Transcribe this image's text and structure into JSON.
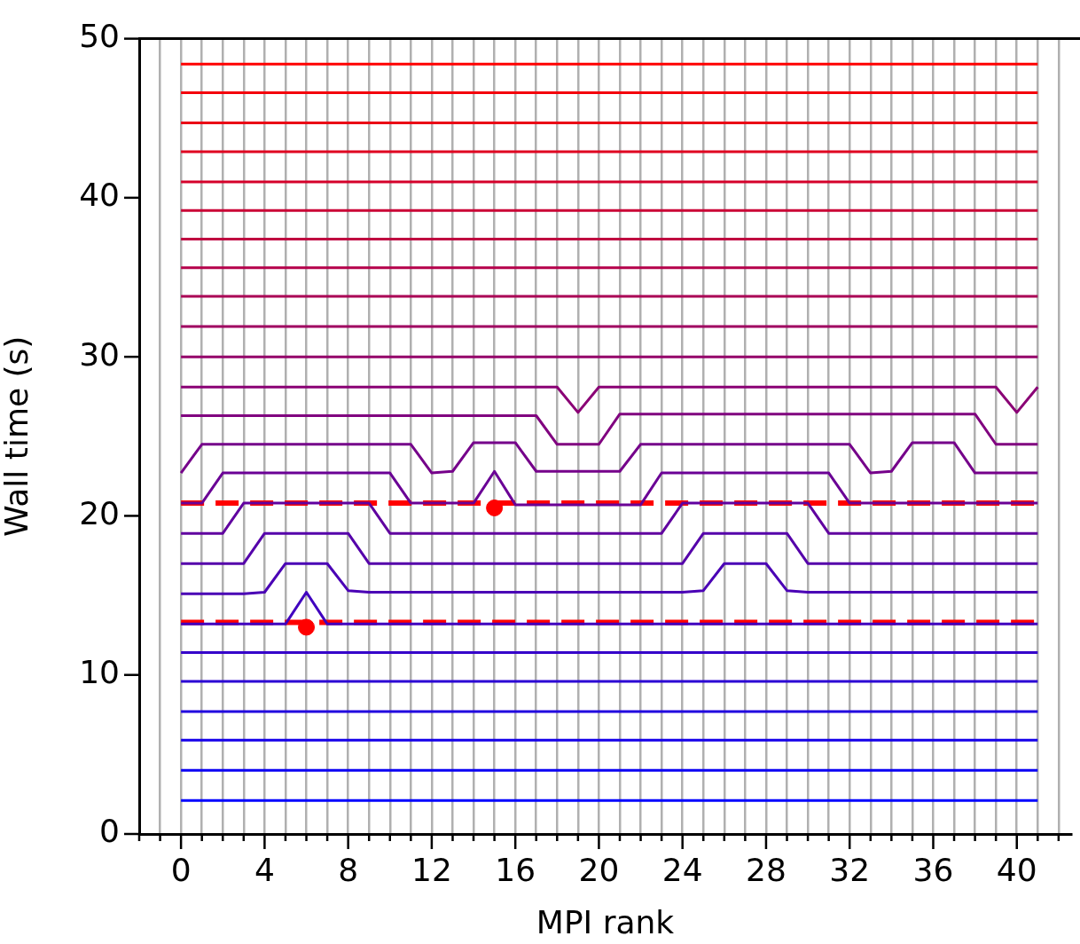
{
  "chart_data": {
    "type": "line",
    "xlabel": "MPI rank",
    "ylabel": "Wall time (s)",
    "x": [
      0,
      1,
      2,
      3,
      4,
      5,
      6,
      7,
      8,
      9,
      10,
      11,
      12,
      13,
      14,
      15,
      16,
      17,
      18,
      19,
      20,
      21,
      22,
      23,
      24,
      25,
      26,
      27,
      28,
      29,
      30,
      31,
      32,
      33,
      34,
      35,
      36,
      37,
      38,
      39,
      40,
      41
    ],
    "xlim": [
      -2,
      42.6
    ],
    "ylim": [
      0,
      50
    ],
    "xticks": [
      {
        "value": -2,
        "label": null
      },
      {
        "value": -1,
        "label": null
      },
      0,
      {
        "value": 1,
        "label": null
      },
      {
        "value": 2,
        "label": null
      },
      {
        "value": 3,
        "label": null
      },
      4,
      {
        "value": 5,
        "label": null
      },
      {
        "value": 6,
        "label": null
      },
      {
        "value": 7,
        "label": null
      },
      8,
      {
        "value": 9,
        "label": null
      },
      {
        "value": 10,
        "label": null
      },
      {
        "value": 11,
        "label": null
      },
      12,
      {
        "value": 13,
        "label": null
      },
      {
        "value": 14,
        "label": null
      },
      {
        "value": 15,
        "label": null
      },
      16,
      {
        "value": 17,
        "label": null
      },
      {
        "value": 18,
        "label": null
      },
      {
        "value": 19,
        "label": null
      },
      20,
      {
        "value": 21,
        "label": null
      },
      {
        "value": 22,
        "label": null
      },
      {
        "value": 23,
        "label": null
      },
      24,
      {
        "value": 25,
        "label": null
      },
      {
        "value": 26,
        "label": null
      },
      {
        "value": 27,
        "label": null
      },
      28,
      {
        "value": 29,
        "label": null
      },
      {
        "value": 30,
        "label": null
      },
      {
        "value": 31,
        "label": null
      },
      32,
      {
        "value": 33,
        "label": null
      },
      {
        "value": 34,
        "label": null
      },
      {
        "value": 35,
        "label": null
      },
      36,
      {
        "value": 37,
        "label": null
      },
      {
        "value": 38,
        "label": null
      },
      {
        "value": 39,
        "label": null
      },
      40,
      {
        "value": 41,
        "label": null
      },
      {
        "value": 42,
        "label": null
      }
    ],
    "yticks": [
      0,
      10,
      20,
      30,
      40,
      50
    ],
    "grid": "x",
    "legend": false,
    "marker": "none",
    "line_style": "solid",
    "series": [
      {
        "color": "#0000ff",
        "values": [
          2.1,
          2.1,
          2.1,
          2.1,
          2.1,
          2.1,
          2.1,
          2.1,
          2.1,
          2.1,
          2.1,
          2.1,
          2.1,
          2.1,
          2.1,
          2.1,
          2.1,
          2.1,
          2.1,
          2.1,
          2.1,
          2.1,
          2.1,
          2.1,
          2.1,
          2.1,
          2.1,
          2.1,
          2.1,
          2.1,
          2.1,
          2.1,
          2.1,
          2.1,
          2.1,
          2.1,
          2.1,
          2.1,
          2.1,
          2.1,
          2.1,
          2.1
        ]
      },
      {
        "color": "#0b00f4",
        "values": [
          4.0,
          4.0,
          4.0,
          4.0,
          4.0,
          4.0,
          4.0,
          4.0,
          4.0,
          4.0,
          4.0,
          4.0,
          4.0,
          4.0,
          4.0,
          4.0,
          4.0,
          4.0,
          4.0,
          4.0,
          4.0,
          4.0,
          4.0,
          4.0,
          4.0,
          4.0,
          4.0,
          4.0,
          4.0,
          4.0,
          4.0,
          4.0,
          4.0,
          4.0,
          4.0,
          4.0,
          4.0,
          4.0,
          4.0,
          4.0,
          4.0,
          4.0
        ]
      },
      {
        "color": "#1500ea",
        "values": [
          5.9,
          5.9,
          5.9,
          5.9,
          5.9,
          5.9,
          5.9,
          5.9,
          5.9,
          5.9,
          5.9,
          5.9,
          5.9,
          5.9,
          5.9,
          5.9,
          5.9,
          5.9,
          5.9,
          5.9,
          5.9,
          5.9,
          5.9,
          5.9,
          5.9,
          5.9,
          5.9,
          5.9,
          5.9,
          5.9,
          5.9,
          5.9,
          5.9,
          5.9,
          5.9,
          5.9,
          5.9,
          5.9,
          5.9,
          5.9,
          5.9,
          5.9
        ]
      },
      {
        "color": "#2000df",
        "values": [
          7.7,
          7.7,
          7.7,
          7.7,
          7.7,
          7.7,
          7.7,
          7.7,
          7.7,
          7.7,
          7.7,
          7.7,
          7.7,
          7.7,
          7.7,
          7.7,
          7.7,
          7.7,
          7.7,
          7.7,
          7.7,
          7.7,
          7.7,
          7.7,
          7.7,
          7.7,
          7.7,
          7.7,
          7.7,
          7.7,
          7.7,
          7.7,
          7.7,
          7.7,
          7.7,
          7.7,
          7.7,
          7.7,
          7.7,
          7.7,
          7.7,
          7.7
        ]
      },
      {
        "color": "#2b00d4",
        "values": [
          9.6,
          9.6,
          9.6,
          9.6,
          9.6,
          9.6,
          9.6,
          9.6,
          9.6,
          9.6,
          9.6,
          9.6,
          9.6,
          9.6,
          9.6,
          9.6,
          9.6,
          9.6,
          9.6,
          9.6,
          9.6,
          9.6,
          9.6,
          9.6,
          9.6,
          9.6,
          9.6,
          9.6,
          9.6,
          9.6,
          9.6,
          9.6,
          9.6,
          9.6,
          9.6,
          9.6,
          9.6,
          9.6,
          9.6,
          9.6,
          9.6,
          9.6
        ]
      },
      {
        "color": "#3500ca",
        "values": [
          11.4,
          11.4,
          11.4,
          11.4,
          11.4,
          11.4,
          11.4,
          11.4,
          11.4,
          11.4,
          11.4,
          11.4,
          11.4,
          11.4,
          11.4,
          11.4,
          11.4,
          11.4,
          11.4,
          11.4,
          11.4,
          11.4,
          11.4,
          11.4,
          11.4,
          11.4,
          11.4,
          11.4,
          11.4,
          11.4,
          11.4,
          11.4,
          11.4,
          11.4,
          11.4,
          11.4,
          11.4,
          11.4,
          11.4,
          11.4,
          11.4,
          11.4
        ]
      },
      {
        "color": "#4000bf",
        "values": [
          13.2,
          13.2,
          13.2,
          13.2,
          13.2,
          13.2,
          15.2,
          13.2,
          13.2,
          13.2,
          13.2,
          13.2,
          13.2,
          13.2,
          13.2,
          13.2,
          13.2,
          13.2,
          13.2,
          13.2,
          13.2,
          13.2,
          13.2,
          13.2,
          13.2,
          13.2,
          13.2,
          13.2,
          13.2,
          13.2,
          13.2,
          13.2,
          13.2,
          13.2,
          13.2,
          13.2,
          13.2,
          13.2,
          13.2,
          13.2,
          13.2,
          13.2
        ]
      },
      {
        "color": "#4a00b5",
        "values": [
          15.1,
          15.1,
          15.1,
          15.1,
          15.2,
          17.0,
          17.0,
          17.0,
          15.3,
          15.2,
          15.2,
          15.2,
          15.2,
          15.2,
          15.2,
          15.2,
          15.2,
          15.2,
          15.2,
          15.2,
          15.2,
          15.2,
          15.2,
          15.2,
          15.2,
          15.3,
          17.0,
          17.0,
          17.0,
          15.3,
          15.2,
          15.2,
          15.2,
          15.2,
          15.2,
          15.2,
          15.2,
          15.2,
          15.2,
          15.2,
          15.2,
          15.2
        ]
      },
      {
        "color": "#5500aa",
        "values": [
          17.0,
          17.0,
          17.0,
          17.0,
          18.9,
          18.9,
          18.9,
          18.9,
          18.9,
          17.0,
          17.0,
          17.0,
          17.0,
          17.0,
          17.0,
          17.0,
          17.0,
          17.0,
          17.0,
          17.0,
          17.0,
          17.0,
          17.0,
          17.0,
          17.0,
          18.9,
          18.9,
          18.9,
          18.9,
          18.9,
          17.0,
          17.0,
          17.0,
          17.0,
          17.0,
          17.0,
          17.0,
          17.0,
          17.0,
          17.0,
          17.0,
          17.0
        ]
      },
      {
        "color": "#60009f",
        "values": [
          18.9,
          18.9,
          18.9,
          20.8,
          20.8,
          20.8,
          20.8,
          20.8,
          20.8,
          20.8,
          18.9,
          18.9,
          18.9,
          18.9,
          18.9,
          18.9,
          18.9,
          18.9,
          18.9,
          18.9,
          18.9,
          18.9,
          18.9,
          18.9,
          20.8,
          20.8,
          20.8,
          20.8,
          20.8,
          20.8,
          20.8,
          18.9,
          18.9,
          18.9,
          18.9,
          18.9,
          18.9,
          18.9,
          18.9,
          18.9,
          18.9,
          18.9
        ]
      },
      {
        "color": "#6a0095",
        "values": [
          20.8,
          20.8,
          22.7,
          22.7,
          22.7,
          22.7,
          22.7,
          22.7,
          22.7,
          22.7,
          22.7,
          20.8,
          20.8,
          20.8,
          20.8,
          22.8,
          20.7,
          20.7,
          20.7,
          20.7,
          20.7,
          20.7,
          20.7,
          22.7,
          22.7,
          22.7,
          22.7,
          22.7,
          22.7,
          22.7,
          22.7,
          22.7,
          20.8,
          20.8,
          20.8,
          20.8,
          20.8,
          20.8,
          20.8,
          20.8,
          20.8,
          20.8
        ]
      },
      {
        "color": "#75008a",
        "values": [
          22.7,
          24.5,
          24.5,
          24.5,
          24.5,
          24.5,
          24.5,
          24.5,
          24.5,
          24.5,
          24.5,
          24.5,
          22.7,
          22.8,
          24.6,
          24.6,
          24.6,
          22.8,
          22.8,
          22.8,
          22.8,
          22.8,
          24.5,
          24.5,
          24.5,
          24.5,
          24.5,
          24.5,
          24.5,
          24.5,
          24.5,
          24.5,
          24.5,
          22.7,
          22.8,
          24.6,
          24.6,
          24.6,
          22.7,
          22.7,
          22.7,
          22.7
        ]
      },
      {
        "color": "#80007f",
        "values": [
          26.3,
          26.3,
          26.3,
          26.3,
          26.3,
          26.3,
          26.3,
          26.3,
          26.3,
          26.3,
          26.3,
          26.3,
          26.3,
          26.3,
          26.3,
          26.3,
          26.3,
          26.3,
          24.5,
          24.5,
          24.5,
          26.4,
          26.4,
          26.4,
          26.4,
          26.4,
          26.4,
          26.4,
          26.4,
          26.4,
          26.4,
          26.4,
          26.4,
          26.4,
          26.4,
          26.4,
          26.4,
          26.4,
          26.4,
          24.5,
          24.5,
          24.5
        ]
      },
      {
        "color": "#8a0075",
        "values": [
          28.1,
          28.1,
          28.1,
          28.1,
          28.1,
          28.1,
          28.1,
          28.1,
          28.1,
          28.1,
          28.1,
          28.1,
          28.1,
          28.1,
          28.1,
          28.1,
          28.1,
          28.1,
          28.1,
          26.5,
          28.1,
          28.1,
          28.1,
          28.1,
          28.1,
          28.1,
          28.1,
          28.1,
          28.1,
          28.1,
          28.1,
          28.1,
          28.1,
          28.1,
          28.1,
          28.1,
          28.1,
          28.1,
          28.1,
          28.1,
          26.5,
          28.1
        ]
      },
      {
        "color": "#95006a",
        "values": [
          30.0,
          30.0,
          30.0,
          30.0,
          30.0,
          30.0,
          30.0,
          30.0,
          30.0,
          30.0,
          30.0,
          30.0,
          30.0,
          30.0,
          30.0,
          30.0,
          30.0,
          30.0,
          30.0,
          30.0,
          30.0,
          30.0,
          30.0,
          30.0,
          30.0,
          30.0,
          30.0,
          30.0,
          30.0,
          30.0,
          30.0,
          30.0,
          30.0,
          30.0,
          30.0,
          30.0,
          30.0,
          30.0,
          30.0,
          30.0,
          30.0,
          30.0
        ]
      },
      {
        "color": "#9f0060",
        "values": [
          31.9,
          31.9,
          31.9,
          31.9,
          31.9,
          31.9,
          31.9,
          31.9,
          31.9,
          31.9,
          31.9,
          31.9,
          31.9,
          31.9,
          31.9,
          31.9,
          31.9,
          31.9,
          31.9,
          31.9,
          31.9,
          31.9,
          31.9,
          31.9,
          31.9,
          31.9,
          31.9,
          31.9,
          31.9,
          31.9,
          31.9,
          31.9,
          31.9,
          31.9,
          31.9,
          31.9,
          31.9,
          31.9,
          31.9,
          31.9,
          31.9,
          31.9
        ]
      },
      {
        "color": "#aa0055",
        "values": [
          33.8,
          33.8,
          33.8,
          33.8,
          33.8,
          33.8,
          33.8,
          33.8,
          33.8,
          33.8,
          33.8,
          33.8,
          33.8,
          33.8,
          33.8,
          33.8,
          33.8,
          33.8,
          33.8,
          33.8,
          33.8,
          33.8,
          33.8,
          33.8,
          33.8,
          33.8,
          33.8,
          33.8,
          33.8,
          33.8,
          33.8,
          33.8,
          33.8,
          33.8,
          33.8,
          33.8,
          33.8,
          33.8,
          33.8,
          33.8,
          33.8,
          33.8
        ]
      },
      {
        "color": "#b5004a",
        "values": [
          35.6,
          35.6,
          35.6,
          35.6,
          35.6,
          35.6,
          35.6,
          35.6,
          35.6,
          35.6,
          35.6,
          35.6,
          35.6,
          35.6,
          35.6,
          35.6,
          35.6,
          35.6,
          35.6,
          35.6,
          35.6,
          35.6,
          35.6,
          35.6,
          35.6,
          35.6,
          35.6,
          35.6,
          35.6,
          35.6,
          35.6,
          35.6,
          35.6,
          35.6,
          35.6,
          35.6,
          35.6,
          35.6,
          35.6,
          35.6,
          35.6,
          35.6
        ]
      },
      {
        "color": "#bf0040",
        "values": [
          37.4,
          37.4,
          37.4,
          37.4,
          37.4,
          37.4,
          37.4,
          37.4,
          37.4,
          37.4,
          37.4,
          37.4,
          37.4,
          37.4,
          37.4,
          37.4,
          37.4,
          37.4,
          37.4,
          37.4,
          37.4,
          37.4,
          37.4,
          37.4,
          37.4,
          37.4,
          37.4,
          37.4,
          37.4,
          37.4,
          37.4,
          37.4,
          37.4,
          37.4,
          37.4,
          37.4,
          37.4,
          37.4,
          37.4,
          37.4,
          37.4,
          37.4
        ]
      },
      {
        "color": "#ca0035",
        "values": [
          39.2,
          39.2,
          39.2,
          39.2,
          39.2,
          39.2,
          39.2,
          39.2,
          39.2,
          39.2,
          39.2,
          39.2,
          39.2,
          39.2,
          39.2,
          39.2,
          39.2,
          39.2,
          39.2,
          39.2,
          39.2,
          39.2,
          39.2,
          39.2,
          39.2,
          39.2,
          39.2,
          39.2,
          39.2,
          39.2,
          39.2,
          39.2,
          39.2,
          39.2,
          39.2,
          39.2,
          39.2,
          39.2,
          39.2,
          39.2,
          39.2,
          39.2
        ]
      },
      {
        "color": "#d5002a",
        "values": [
          41.0,
          41.0,
          41.0,
          41.0,
          41.0,
          41.0,
          41.0,
          41.0,
          41.0,
          41.0,
          41.0,
          41.0,
          41.0,
          41.0,
          41.0,
          41.0,
          41.0,
          41.0,
          41.0,
          41.0,
          41.0,
          41.0,
          41.0,
          41.0,
          41.0,
          41.0,
          41.0,
          41.0,
          41.0,
          41.0,
          41.0,
          41.0,
          41.0,
          41.0,
          41.0,
          41.0,
          41.0,
          41.0,
          41.0,
          41.0,
          41.0,
          41.0
        ]
      },
      {
        "color": "#df0020",
        "values": [
          42.9,
          42.9,
          42.9,
          42.9,
          42.9,
          42.9,
          42.9,
          42.9,
          42.9,
          42.9,
          42.9,
          42.9,
          42.9,
          42.9,
          42.9,
          42.9,
          42.9,
          42.9,
          42.9,
          42.9,
          42.9,
          42.9,
          42.9,
          42.9,
          42.9,
          42.9,
          42.9,
          42.9,
          42.9,
          42.9,
          42.9,
          42.9,
          42.9,
          42.9,
          42.9,
          42.9,
          42.9,
          42.9,
          42.9,
          42.9,
          42.9,
          42.9
        ]
      },
      {
        "color": "#ea0015",
        "values": [
          44.7,
          44.7,
          44.7,
          44.7,
          44.7,
          44.7,
          44.7,
          44.7,
          44.7,
          44.7,
          44.7,
          44.7,
          44.7,
          44.7,
          44.7,
          44.7,
          44.7,
          44.7,
          44.7,
          44.7,
          44.7,
          44.7,
          44.7,
          44.7,
          44.7,
          44.7,
          44.7,
          44.7,
          44.7,
          44.7,
          44.7,
          44.7,
          44.7,
          44.7,
          44.7,
          44.7,
          44.7,
          44.7,
          44.7,
          44.7,
          44.7,
          44.7
        ]
      },
      {
        "color": "#f4000b",
        "values": [
          46.6,
          46.6,
          46.6,
          46.6,
          46.6,
          46.6,
          46.6,
          46.6,
          46.6,
          46.6,
          46.6,
          46.6,
          46.6,
          46.6,
          46.6,
          46.6,
          46.6,
          46.6,
          46.6,
          46.6,
          46.6,
          46.6,
          46.6,
          46.6,
          46.6,
          46.6,
          46.6,
          46.6,
          46.6,
          46.6,
          46.6,
          46.6,
          46.6,
          46.6,
          46.6,
          46.6,
          46.6,
          46.6,
          46.6,
          46.6,
          46.6,
          46.6
        ]
      },
      {
        "color": "#ff0000",
        "values": [
          48.4,
          48.4,
          48.4,
          48.4,
          48.4,
          48.4,
          48.4,
          48.4,
          48.4,
          48.4,
          48.4,
          48.4,
          48.4,
          48.4,
          48.4,
          48.4,
          48.4,
          48.4,
          48.4,
          48.4,
          48.4,
          48.4,
          48.4,
          48.4,
          48.4,
          48.4,
          48.4,
          48.4,
          48.4,
          48.4,
          48.4,
          48.4,
          48.4,
          48.4,
          48.4,
          48.4,
          48.4,
          48.4,
          48.4,
          48.4,
          48.4,
          48.4
        ]
      },
      {
        "color": "#ff0000",
        "line_style": "dashed",
        "x": [
          0,
          41
        ],
        "values": [
          20.8,
          20.8
        ]
      },
      {
        "color": "#ff0000",
        "line_style": "dashed",
        "x": [
          0,
          41
        ],
        "values": [
          13.3,
          13.3
        ]
      },
      {
        "type": "scatter",
        "color": "#ff0000",
        "marker": "circle",
        "x": [
          6,
          15
        ],
        "values": [
          13.0,
          20.5
        ]
      }
    ]
  }
}
